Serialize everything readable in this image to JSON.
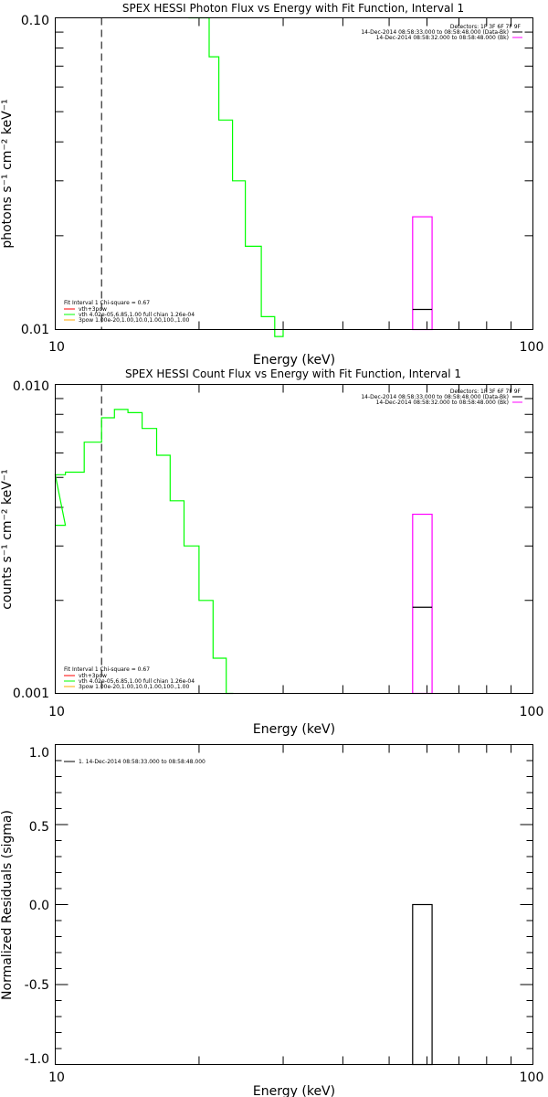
{
  "chart_data": [
    {
      "type": "line",
      "title": "SPEX HESSI Photon Flux vs Energy with Fit Function, Interval 1",
      "xlabel": "Energy (keV)",
      "ylabel": "photons s⁻¹ cm⁻² keV⁻¹",
      "xscale": "log",
      "yscale": "log",
      "xlim": [
        10,
        100
      ],
      "ylim": [
        0.01,
        0.1
      ],
      "x_tick_labels": [
        "10",
        "100"
      ],
      "y_tick_labels": [
        "0.01",
        "0.10"
      ],
      "marker_line_x": 12.5,
      "legend_topright": [
        "Detectors: 1F 3F 6F 7F 9F",
        "14-Dec-2014 08:58:33.000 to 08:58:48.000 (Data-Bk)",
        "14-Dec-2014 08:58:32.000 to 08:58:48.000 (Bk)"
      ],
      "legend_bottomleft": [
        "Fit Interval 1    Chi-square = 0.67",
        "vth+3pow",
        "vth 4.02e-05,6.85,1.00  full chian 1.26e-04",
        "3pow 1.00e-20,1.00,10.0,1.00,100.,1.00"
      ],
      "series": [
        {
          "color": "#00ff00",
          "steps": [
            [
              21.0,
              19.0,
              0.1
            ],
            [
              21.0,
              22.0,
              0.075
            ],
            [
              22.0,
              23.5,
              0.047
            ],
            [
              23.5,
              25.0,
              0.03
            ],
            [
              25.0,
              27.0,
              0.0185
            ],
            [
              27.0,
              28.8,
              0.011
            ],
            [
              28.8,
              30.0,
              0.0095
            ]
          ]
        },
        {
          "color": "#ff00ff",
          "box": {
            "x_low": 56.0,
            "x_high": 61.5,
            "y_low": 0.01,
            "y_high": 0.023
          }
        },
        {
          "color": "#000000",
          "segment": {
            "x_low": 56.0,
            "x_high": 61.5,
            "y": 0.0116
          }
        }
      ]
    },
    {
      "type": "line",
      "title": "SPEX HESSI Count Flux vs Energy with Fit Function, Interval 1",
      "xlabel": "Energy (keV)",
      "ylabel": "counts s⁻¹ cm⁻² keV⁻¹",
      "xscale": "log",
      "yscale": "log",
      "xlim": [
        10,
        100
      ],
      "ylim": [
        0.001,
        0.01
      ],
      "x_tick_labels": [
        "10",
        "100"
      ],
      "y_tick_labels": [
        "0.001",
        "0.010"
      ],
      "marker_line_x": 12.5,
      "legend_topright": [
        "Detectors: 1F 3F 6F 7F 9F",
        "14-Dec-2014 08:58:33.000 to 08:58:48.000 (Data-Bk)",
        "14-Dec-2014 08:58:32.000 to 08:58:48.000 (Bk)"
      ],
      "legend_bottomleft": [
        "Fit Interval 1    Chi-square = 0.67",
        "vth+3pow",
        "vth 4.02e-05,6.85,1.00  full chian 1.26e-04",
        "3pow 1.00e-20,1.00,10.0,1.00,100.,1.00"
      ],
      "series": [
        {
          "color": "#00ff00",
          "steps": [
            [
              10.0,
              10.5,
              0.0035
            ],
            [
              10.0,
              10.5,
              0.0051
            ],
            [
              10.5,
              11.5,
              0.0052
            ],
            [
              11.5,
              12.5,
              0.0065
            ],
            [
              12.5,
              13.3,
              0.0078
            ],
            [
              13.3,
              14.2,
              0.0083
            ],
            [
              14.2,
              15.2,
              0.0081
            ],
            [
              15.2,
              16.3,
              0.0072
            ],
            [
              16.3,
              17.4,
              0.0059
            ],
            [
              17.4,
              18.6,
              0.0042
            ],
            [
              18.6,
              20.0,
              0.003
            ],
            [
              20.0,
              21.4,
              0.002
            ],
            [
              21.4,
              22.8,
              0.0013
            ],
            [
              22.8,
              23.6,
              0.001
            ]
          ]
        },
        {
          "color": "#ff00ff",
          "box": {
            "x_low": 56.0,
            "x_high": 61.5,
            "y_low": 0.001,
            "y_high": 0.0038
          }
        },
        {
          "color": "#000000",
          "segment": {
            "x_low": 56.0,
            "x_high": 61.5,
            "y": 0.0019
          }
        }
      ]
    },
    {
      "type": "line",
      "title": "",
      "xlabel": "Energy (keV)",
      "ylabel": "Normalized Residuals (sigma)",
      "xscale": "log",
      "yscale": "linear",
      "xlim": [
        10,
        100
      ],
      "ylim": [
        -1.0,
        1.0
      ],
      "x_tick_labels": [
        "10",
        "100"
      ],
      "y_tick_labels": [
        "1.0",
        "0.5",
        "0.0",
        "-0.5",
        "-1.0"
      ],
      "legend_topleft": [
        "1. 14-Dec-2014 08:58:33.000 to 08:58:48.000"
      ],
      "series": [
        {
          "color": "#000000",
          "box": {
            "x_low": 56.0,
            "x_high": 61.5,
            "y_low": -1.0,
            "y_high": 0.0
          }
        }
      ]
    }
  ]
}
